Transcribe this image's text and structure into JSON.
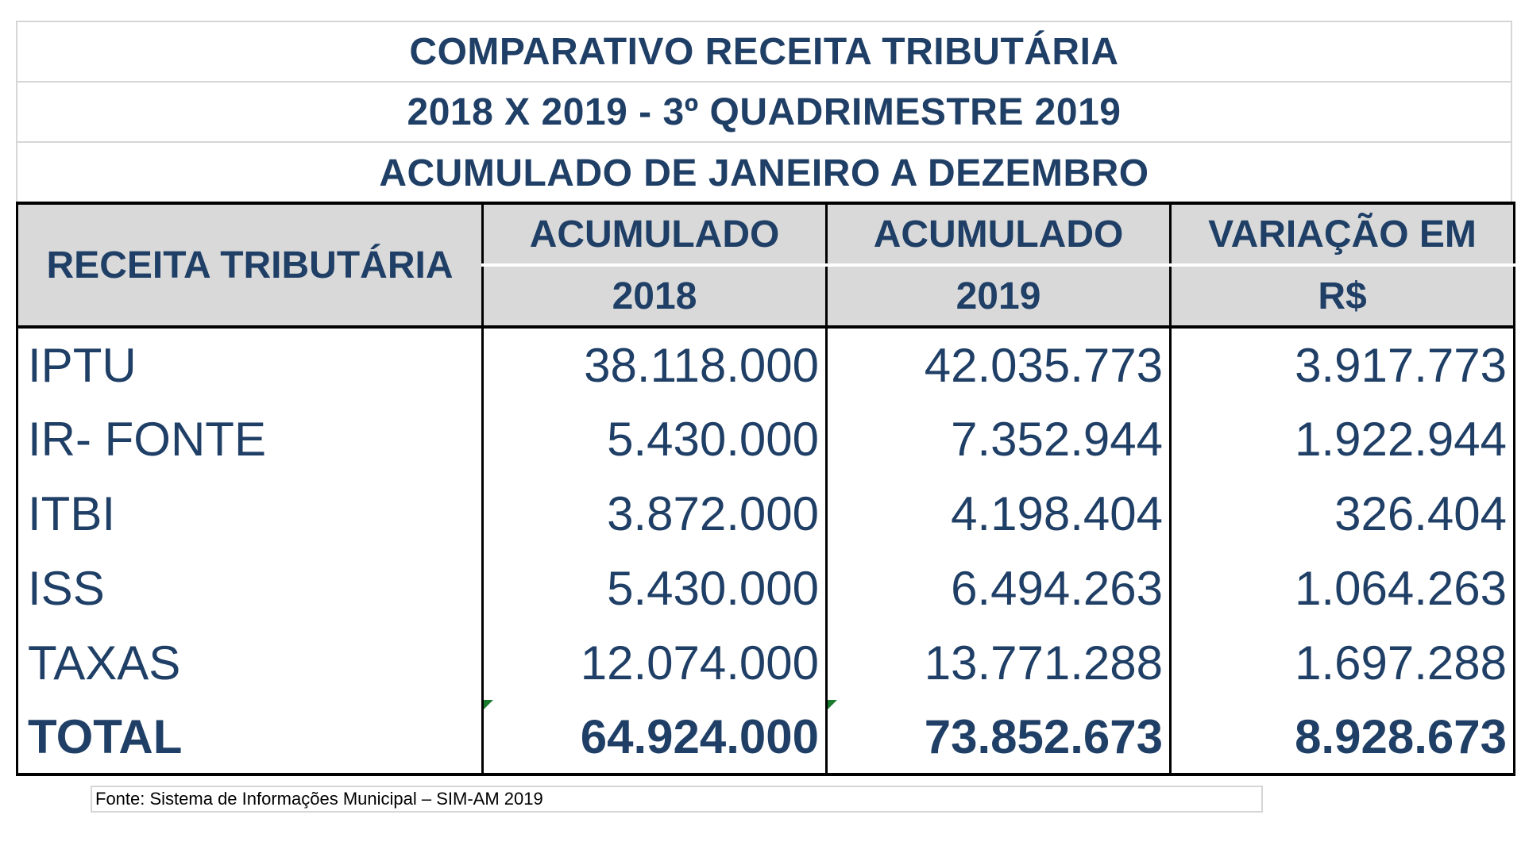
{
  "title": {
    "line1": "COMPARATIVO RECEITA TRIBUTÁRIA",
    "line2": "2018 X 2019 - 3º QUADRIMESTRE 2019",
    "line3": "ACUMULADO DE JANEIRO A DEZEMBRO"
  },
  "table": {
    "header": {
      "col1": "RECEITA TRIBUTÁRIA",
      "col2_line1": "ACUMULADO",
      "col2_line2": "2018",
      "col3_line1": "ACUMULADO",
      "col3_line2": "2019",
      "col4_line1": "VARIAÇÃO EM",
      "col4_line2": "R$"
    },
    "rows": [
      {
        "label": "IPTU",
        "y2018": "38.118.000",
        "y2019": "42.035.773",
        "variation": "3.917.773"
      },
      {
        "label": "IR- FONTE",
        "y2018": "5.430.000",
        "y2019": "7.352.944",
        "variation": "1.922.944"
      },
      {
        "label": "ITBI",
        "y2018": "3.872.000",
        "y2019": "4.198.404",
        "variation": "326.404"
      },
      {
        "label": "ISS",
        "y2018": "5.430.000",
        "y2019": "6.494.263",
        "variation": "1.064.263"
      },
      {
        "label": "TAXAS",
        "y2018": "12.074.000",
        "y2019": "13.771.288",
        "variation": "1.697.288"
      }
    ],
    "total": {
      "label": "TOTAL",
      "y2018": "64.924.000",
      "y2019": "73.852.673",
      "variation": "8.928.673"
    }
  },
  "source": "Fonte: Sistema de Informações Municipal – SIM-AM 2019",
  "colors": {
    "text": "#1f3f66",
    "header_bg": "#d9d9d9",
    "error_mark": "#1a7a2e"
  }
}
